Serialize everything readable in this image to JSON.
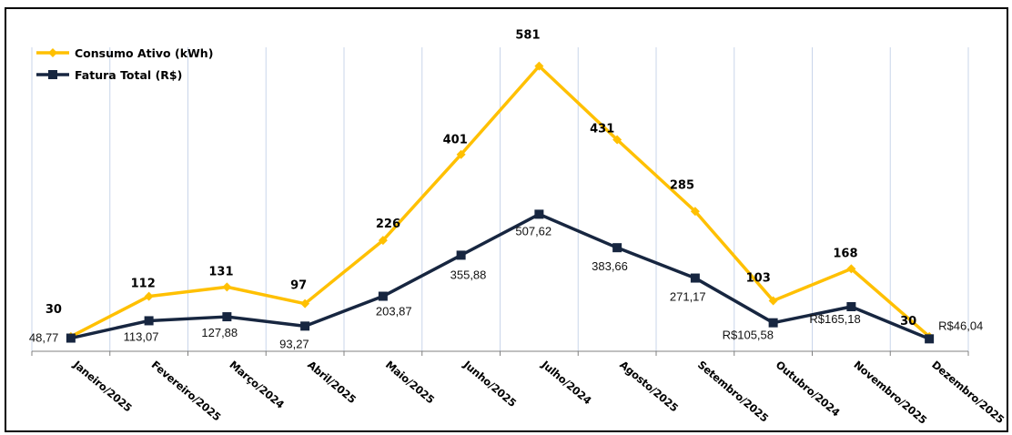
{
  "chart_data": {
    "type": "line",
    "title": "",
    "categories": [
      "Janeiro/2025",
      "Fevereiro/2025",
      "Março/2024",
      "Abril/2025",
      "Maio/2025",
      "Junho/2025",
      "Julho/2024",
      "Agosto/2025",
      "Setembro/2025",
      "Outubro/2024",
      "Novembro/2025",
      "Dezembro/2025"
    ],
    "series": [
      {
        "name": "Consumo Ativo (kWh)",
        "color": "#FFC000",
        "marker": "diamond",
        "axis": "primary",
        "ylim": [
          0,
          660
        ],
        "values": [
          30,
          112,
          131,
          97,
          226,
          401,
          581,
          431,
          285,
          103,
          168,
          30
        ],
        "labels": [
          "30",
          "112",
          "131",
          "97",
          "226",
          "401",
          "581",
          "431",
          "285",
          "103",
          "168",
          "30"
        ]
      },
      {
        "name": "Fatura Total (R$)",
        "color": "#172640",
        "marker": "square",
        "axis": "secondary",
        "ylim": [
          0,
          1200
        ],
        "values": [
          48.77,
          113.07,
          127.88,
          93.27,
          203.87,
          355.88,
          507.62,
          383.66,
          271.17,
          105.58,
          165.18,
          46.04
        ],
        "labels": [
          "48,77",
          "113,07",
          "127,88",
          "93,27",
          "203,87",
          "355,88",
          "507,62",
          "383,66",
          "271,17",
          "R$105,58",
          "R$165,18",
          "R$46,04"
        ]
      }
    ],
    "grid": "vertical",
    "y_axis_visible": false,
    "legend": "top-left"
  }
}
